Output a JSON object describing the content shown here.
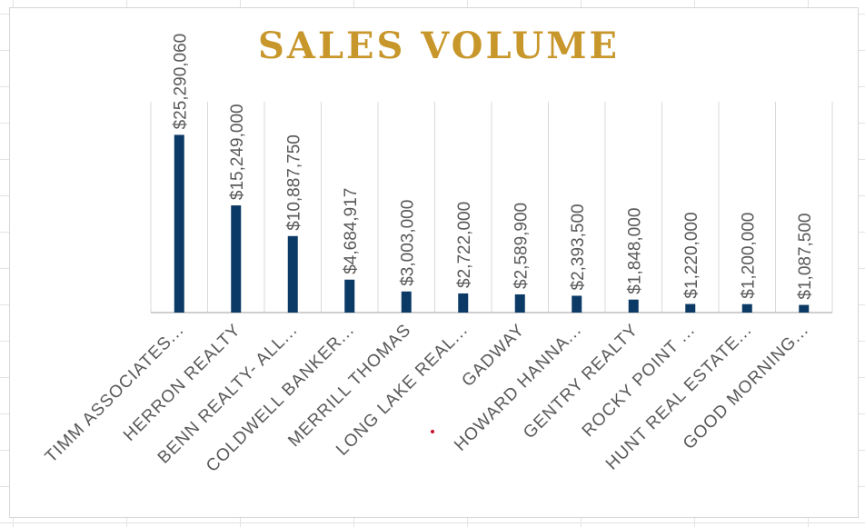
{
  "colors": {
    "bar": "#0b3a66",
    "title": "#c8972b",
    "grid": "#d9d9d9",
    "axis": "#bfbfbf",
    "label": "#595959"
  },
  "chart_data": {
    "type": "bar",
    "title": "SALES VOLUME",
    "xlabel": "",
    "ylabel": "",
    "ylim": [
      0,
      30000000
    ],
    "grid": "vertical category separators",
    "legend": "none",
    "categories": [
      "TIMM ASSOCIATES...",
      "HERRON REALTY",
      "BENN REALTY- ALL...",
      "COLDWELL BANKER...",
      "MERRILL THOMAS",
      "LONG LAKE REAL...",
      "GADWAY",
      "HOWARD HANNA...",
      "GENTRY REALTY",
      "ROCKY POINT ...",
      "HUNT REAL ESTATE...",
      "GOOD MORNING..."
    ],
    "values": [
      25290060,
      15249000,
      10887750,
      4684917,
      3003000,
      2722000,
      2589900,
      2393500,
      1848000,
      1220000,
      1200000,
      1087500
    ],
    "data_labels": [
      "$25,290,060",
      "$15,249,000",
      "$10,887,750",
      "$4,684,917",
      "$3,003,000",
      "$2,722,000",
      "$2,589,900",
      "$2,393,500",
      "$1,848,000",
      "$1,220,000",
      "$1,200,000",
      "$1,087,500"
    ]
  }
}
